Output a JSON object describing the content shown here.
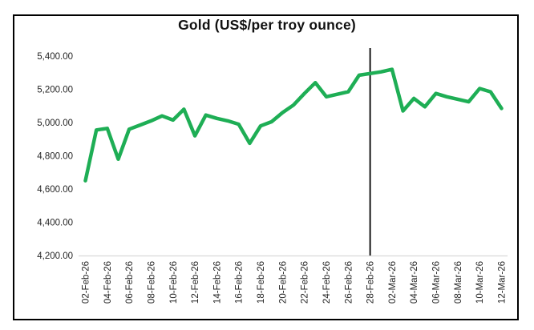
{
  "chart_data": {
    "type": "line",
    "title": "Gold (US$/per troy ounce)",
    "xlabel": "",
    "ylabel": "",
    "ylim": [
      4200,
      5400
    ],
    "y_tick_step": 200,
    "y_tick_labels": [
      "4,200.00",
      "4,400.00",
      "4,600.00",
      "4,800.00",
      "5,000.00",
      "5,200.00",
      "5,400.00"
    ],
    "x": [
      "02-Feb-26",
      "03-Feb-26",
      "04-Feb-26",
      "05-Feb-26",
      "06-Feb-26",
      "07-Feb-26",
      "08-Feb-26",
      "09-Feb-26",
      "10-Feb-26",
      "11-Feb-26",
      "12-Feb-26",
      "13-Feb-26",
      "14-Feb-26",
      "15-Feb-26",
      "16-Feb-26",
      "17-Feb-26",
      "18-Feb-26",
      "19-Feb-26",
      "20-Feb-26",
      "21-Feb-26",
      "22-Feb-26",
      "23-Feb-26",
      "24-Feb-26",
      "25-Feb-26",
      "26-Feb-26",
      "27-Feb-26",
      "28-Feb-26",
      "01-Mar-26",
      "02-Mar-26",
      "03-Mar-26",
      "04-Mar-26",
      "05-Mar-26",
      "06-Mar-26",
      "07-Mar-26",
      "08-Mar-26",
      "09-Mar-26",
      "10-Mar-26",
      "11-Mar-26",
      "12-Mar-26"
    ],
    "x_tick_labels": [
      "02-Feb-26",
      "04-Feb-26",
      "06-Feb-26",
      "08-Feb-26",
      "10-Feb-26",
      "12-Feb-26",
      "14-Feb-26",
      "16-Feb-26",
      "18-Feb-26",
      "20-Feb-26",
      "22-Feb-26",
      "24-Feb-26",
      "26-Feb-26",
      "28-Feb-26",
      "02-Mar-26",
      "04-Mar-26",
      "06-Mar-26",
      "08-Mar-26",
      "10-Mar-26",
      "12-Mar-26"
    ],
    "x_tick_interval": 2,
    "series": [
      {
        "name": "Gold (US$/per troy ounce)",
        "color": "#1EAE55",
        "values": [
          4650,
          4955,
          4965,
          4780,
          4960,
          4985,
          5010,
          5040,
          5015,
          5080,
          4920,
          5045,
          5025,
          5010,
          4990,
          4875,
          4980,
          5005,
          5060,
          5105,
          5175,
          5240,
          5155,
          5170,
          5185,
          5285,
          5295,
          5305,
          5320,
          5070,
          5145,
          5095,
          5175,
          5155,
          5140,
          5125,
          5205,
          5185,
          5085
        ]
      }
    ],
    "annotation": {
      "type": "vertical-line",
      "x": "28-Feb-26",
      "color": "#000000"
    },
    "grid": "off",
    "legend": "none",
    "axis_line_color": "#d9d9d9",
    "tick_label_color": "#262626",
    "frame_border_color": "#000000",
    "background_color": "#ffffff"
  }
}
